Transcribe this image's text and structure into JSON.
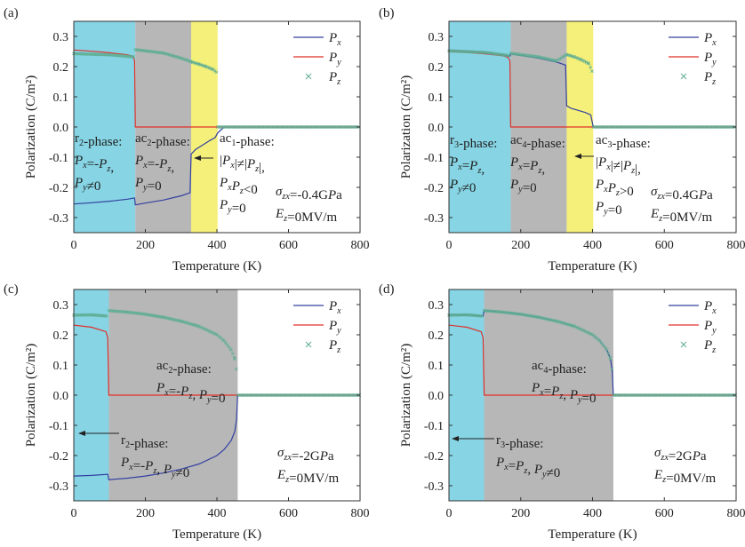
{
  "figure": {
    "xlabel": "Temperature (K)",
    "ylabel": "Polarization (C/m²)",
    "xticks": [
      0,
      200,
      400,
      600,
      800
    ],
    "yticks": [
      0.3,
      0.2,
      0.1,
      0.0,
      -0.1,
      -0.2,
      -0.3
    ],
    "ytick_labels": [
      "0.3",
      "0.2",
      "0.1",
      "0.0",
      "-0.1",
      "-0.2",
      "-0.3"
    ],
    "legend_labels": [
      "Px",
      "Py",
      "Pz"
    ],
    "colors": {
      "Px": "#3340a0",
      "Py": "#e0302a",
      "Pz": "#5fae93",
      "cyan": "#86d4e4",
      "gray": "#b7b7b7",
      "yellow": "#f5f07a"
    }
  },
  "chart_data": [
    {
      "panel": "(a)",
      "type": "line",
      "xlim": [
        0,
        800
      ],
      "ylim": [
        -0.35,
        0.35
      ],
      "regions": [
        {
          "x0": 0,
          "x1": 172,
          "color": "cyan"
        },
        {
          "x0": 172,
          "x1": 328,
          "color": "gray"
        },
        {
          "x0": 328,
          "x1": 402,
          "color": "yellow"
        }
      ],
      "series": [
        {
          "name": "Px",
          "x": [
            0,
            50,
            100,
            150,
            170,
            172,
            200,
            250,
            300,
            325,
            328,
            340,
            360,
            380,
            395,
            402,
            420,
            800
          ],
          "y": [
            -0.255,
            -0.251,
            -0.246,
            -0.239,
            -0.235,
            -0.258,
            -0.252,
            -0.242,
            -0.228,
            -0.218,
            -0.09,
            -0.075,
            -0.06,
            -0.045,
            -0.035,
            -0.02,
            0,
            0
          ]
        },
        {
          "name": "Py",
          "x": [
            0,
            50,
            100,
            150,
            165,
            170,
            172,
            800
          ],
          "y": [
            0.255,
            0.251,
            0.246,
            0.239,
            0.234,
            0.22,
            0,
            0
          ]
        },
        {
          "name": "Pz",
          "x": [
            0,
            100,
            170,
            172,
            250,
            300,
            328,
            350,
            370,
            390,
            400,
            402,
            800
          ],
          "y": [
            0.243,
            0.239,
            0.232,
            0.256,
            0.245,
            0.228,
            0.216,
            0.208,
            0.2,
            0.19,
            0.18,
            0,
            0
          ]
        }
      ],
      "annotations": [
        {
          "lines": [
            "r2-phase:",
            "Px=-Pz,",
            "Py≠0"
          ]
        },
        {
          "lines": [
            "ac2-phase:",
            "Px=-Pz,",
            "Py=0"
          ]
        },
        {
          "lines": [
            "ac1-phase:",
            "|Px|≠|Pz|,",
            "PxPz<0",
            "Py=0"
          ]
        },
        {
          "lines": [
            "σzx=-0.4GPa",
            "Ez=0MV/m"
          ]
        }
      ]
    },
    {
      "panel": "(b)",
      "type": "line",
      "xlim": [
        0,
        800
      ],
      "ylim": [
        -0.35,
        0.35
      ],
      "regions": [
        {
          "x0": 0,
          "x1": 172,
          "color": "cyan"
        },
        {
          "x0": 172,
          "x1": 328,
          "color": "gray"
        },
        {
          "x0": 328,
          "x1": 402,
          "color": "yellow"
        }
      ],
      "series": [
        {
          "name": "Px",
          "x": [
            0,
            50,
            100,
            150,
            170,
            172,
            250,
            300,
            325,
            328,
            340,
            360,
            380,
            395,
            402,
            800
          ],
          "y": [
            0.255,
            0.251,
            0.246,
            0.239,
            0.234,
            0.242,
            0.228,
            0.215,
            0.205,
            0.07,
            0.062,
            0.055,
            0.048,
            0.04,
            0,
            0
          ]
        },
        {
          "name": "Py",
          "x": [
            0,
            50,
            100,
            150,
            165,
            170,
            172,
            800
          ],
          "y": [
            0.25,
            0.247,
            0.242,
            0.236,
            0.231,
            0.218,
            0,
            0
          ]
        },
        {
          "name": "Pz",
          "x": [
            0,
            100,
            170,
            172,
            250,
            300,
            328,
            350,
            370,
            390,
            400,
            402,
            800
          ],
          "y": [
            0.252,
            0.247,
            0.236,
            0.244,
            0.232,
            0.219,
            0.24,
            0.232,
            0.222,
            0.21,
            0.18,
            0,
            0
          ]
        }
      ],
      "annotations": [
        {
          "lines": [
            "r3-phase:",
            "Px=Pz,",
            "Py≠0"
          ]
        },
        {
          "lines": [
            "ac4-phase:",
            "Px=Pz,",
            "Py=0"
          ]
        },
        {
          "lines": [
            "ac3-phase:",
            "|Px|≠|Pz|,",
            "PxPz>0",
            "Py=0"
          ]
        },
        {
          "lines": [
            "σzx=0.4GPa",
            "Ez=0MV/m"
          ]
        }
      ]
    },
    {
      "panel": "(c)",
      "type": "line",
      "xlim": [
        0,
        800
      ],
      "ylim": [
        -0.35,
        0.35
      ],
      "regions": [
        {
          "x0": 0,
          "x1": 98,
          "color": "cyan"
        },
        {
          "x0": 98,
          "x1": 458,
          "color": "gray"
        }
      ],
      "series": [
        {
          "name": "Px",
          "x": [
            0,
            50,
            95,
            98,
            150,
            200,
            250,
            300,
            350,
            400,
            420,
            440,
            450,
            455,
            458,
            800
          ],
          "y": [
            -0.268,
            -0.266,
            -0.262,
            -0.28,
            -0.275,
            -0.268,
            -0.258,
            -0.245,
            -0.228,
            -0.2,
            -0.18,
            -0.15,
            -0.12,
            -0.08,
            0,
            0
          ]
        },
        {
          "name": "Py",
          "x": [
            0,
            50,
            90,
            95,
            98,
            800
          ],
          "y": [
            0.232,
            0.225,
            0.21,
            0.19,
            0,
            0
          ]
        },
        {
          "name": "Pz",
          "x": [
            0,
            50,
            95,
            98,
            150,
            200,
            250,
            300,
            350,
            400,
            420,
            440,
            450,
            455,
            458,
            800
          ],
          "y": [
            0.265,
            0.266,
            0.262,
            0.28,
            0.275,
            0.268,
            0.258,
            0.245,
            0.228,
            0.2,
            0.18,
            0.15,
            0.12,
            0.08,
            0,
            0
          ]
        }
      ],
      "annotations": [
        {
          "lines": [
            "ac2-phase:",
            "Px=-Pz, Py=0"
          ]
        },
        {
          "lines": [
            "r2-phase:",
            "Px=-Pz, Py≠0"
          ]
        },
        {
          "lines": [
            "σzx=-2GPa",
            "Ez=0MV/m"
          ]
        }
      ]
    },
    {
      "panel": "(d)",
      "type": "line",
      "xlim": [
        0,
        800
      ],
      "ylim": [
        -0.35,
        0.35
      ],
      "regions": [
        {
          "x0": 0,
          "x1": 98,
          "color": "cyan"
        },
        {
          "x0": 98,
          "x1": 458,
          "color": "gray"
        }
      ],
      "series": [
        {
          "name": "Px",
          "x": [
            0,
            50,
            95,
            98,
            150,
            200,
            250,
            300,
            350,
            400,
            420,
            440,
            450,
            455,
            458,
            800
          ],
          "y": [
            0.265,
            0.266,
            0.262,
            0.28,
            0.275,
            0.268,
            0.258,
            0.245,
            0.228,
            0.2,
            0.18,
            0.15,
            0.12,
            0.08,
            0,
            0
          ]
        },
        {
          "name": "Py",
          "x": [
            0,
            50,
            90,
            95,
            98,
            800
          ],
          "y": [
            0.232,
            0.225,
            0.21,
            0.19,
            0,
            0
          ]
        },
        {
          "name": "Pz",
          "x": [
            0,
            50,
            95,
            98,
            150,
            200,
            250,
            300,
            350,
            400,
            420,
            440,
            450,
            455,
            458,
            800
          ],
          "y": [
            0.265,
            0.266,
            0.262,
            0.28,
            0.275,
            0.268,
            0.258,
            0.245,
            0.228,
            0.2,
            0.18,
            0.15,
            0.12,
            0.08,
            0,
            0
          ]
        }
      ],
      "annotations": [
        {
          "lines": [
            "ac4-phase:",
            "Px=Pz, Py=0"
          ]
        },
        {
          "lines": [
            "r3-phase:",
            "Px=Pz, Py≠0"
          ]
        },
        {
          "lines": [
            "σzx=2GPa",
            "Ez=0MV/m"
          ]
        }
      ]
    }
  ]
}
